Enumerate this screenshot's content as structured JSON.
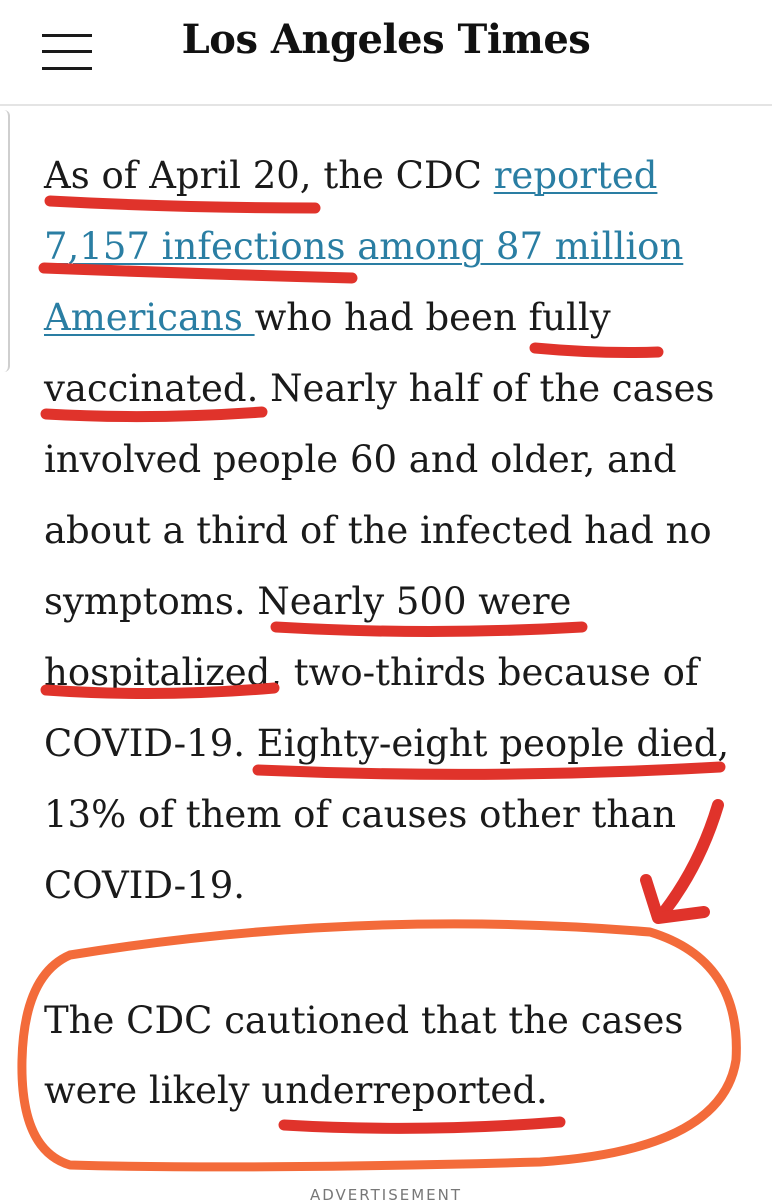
{
  "header": {
    "masthead": "Los Angeles Times",
    "menu_icon": "hamburger-menu-icon"
  },
  "article": {
    "paragraph1": {
      "l1a": "As of April 20, the CDC ",
      "l1link": "reported",
      "l2link": "7,157 infections among 87 million",
      "l3link": "Americans ",
      "l3b": "who had been fully",
      "l4": "vaccinated. Nearly half of the cases",
      "l5": "involved people 60 and older, and",
      "l6": "about a third of the infected had no",
      "l7": "symptoms. Nearly 500 were",
      "l8": "hospitalized, two-thirds because of",
      "l9": "COVID-19. Eighty-eight people died,",
      "l10": "13% of them of causes other than",
      "l11": "COVID-19."
    },
    "paragraph2": {
      "l1": "The CDC cautioned that the cases",
      "l2": "were likely underreported."
    }
  },
  "footer": {
    "advertisement_label": "ADVERTISEMENT"
  },
  "colors": {
    "link": "#2a7ea3",
    "underline_marker": "#e0332b",
    "circle_marker": "#f36b3a",
    "arrow_marker": "#e0332b"
  }
}
